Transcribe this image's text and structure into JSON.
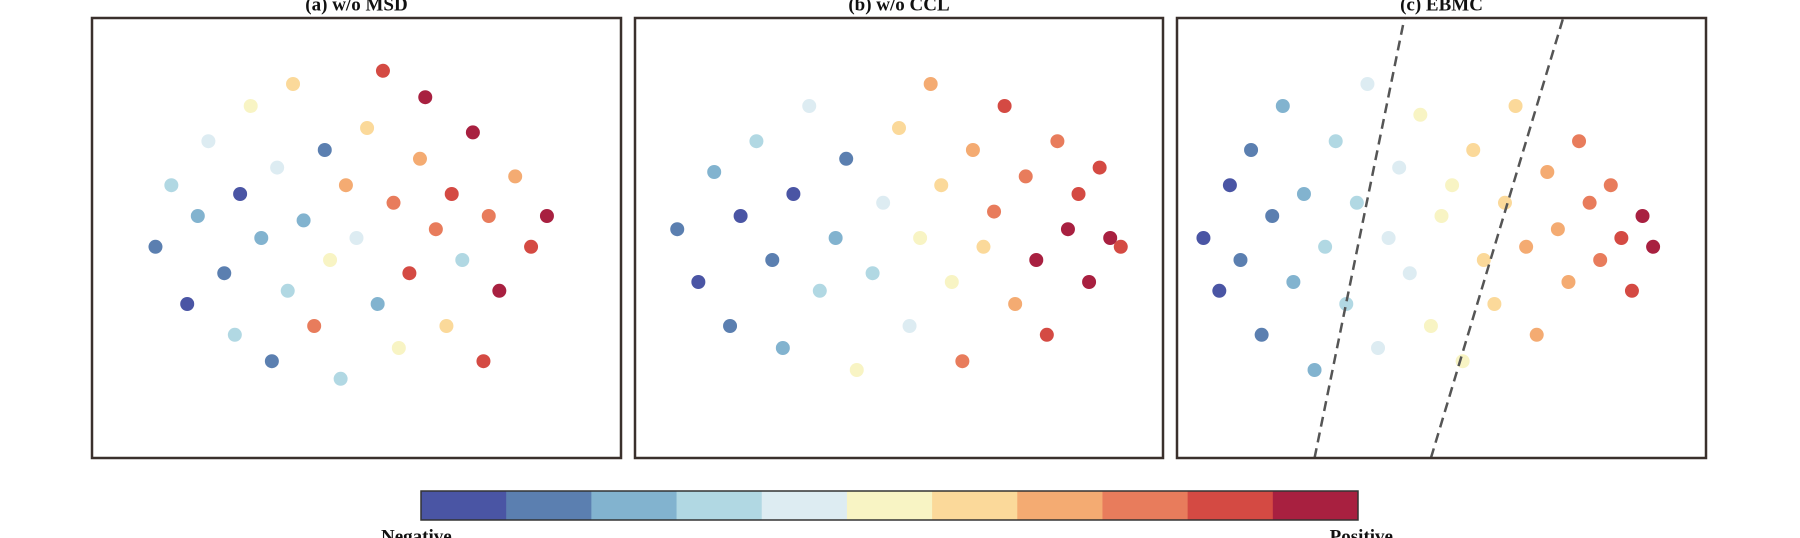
{
  "chart_data": [
    {
      "type": "scatter",
      "title": "(a) w/o MSD",
      "xlim": [
        0,
        100
      ],
      "ylim": [
        0,
        100
      ],
      "x": [
        12,
        15,
        18,
        20,
        22,
        25,
        27,
        28,
        30,
        32,
        34,
        35,
        37,
        38,
        40,
        42,
        44,
        45,
        47,
        48,
        50,
        52,
        54,
        55,
        57,
        58,
        60,
        62,
        63,
        65,
        67,
        68,
        70,
        72,
        74,
        75,
        77,
        80,
        83,
        86
      ],
      "y": [
        48,
        62,
        35,
        55,
        72,
        42,
        28,
        60,
        80,
        50,
        22,
        66,
        38,
        85,
        54,
        30,
        70,
        45,
        18,
        62,
        50,
        75,
        35,
        88,
        58,
        25,
        42,
        68,
        82,
        52,
        30,
        60,
        45,
        74,
        22,
        55,
        38,
        64,
        48,
        55
      ],
      "c": [
        1,
        3,
        0,
        2,
        4,
        1,
        3,
        0,
        5,
        2,
        1,
        4,
        3,
        6,
        2,
        8,
        1,
        5,
        3,
        7,
        4,
        6,
        2,
        9,
        8,
        5,
        9,
        7,
        10,
        8,
        6,
        9,
        3,
        10,
        9,
        8,
        10,
        7,
        9,
        10
      ]
    },
    {
      "type": "scatter",
      "title": "(b) w/o CCL",
      "xlim": [
        0,
        100
      ],
      "ylim": [
        0,
        100
      ],
      "x": [
        8,
        12,
        15,
        18,
        20,
        23,
        26,
        28,
        30,
        33,
        35,
        38,
        40,
        42,
        45,
        47,
        50,
        52,
        54,
        56,
        58,
        60,
        62,
        64,
        66,
        68,
        70,
        72,
        74,
        76,
        78,
        80,
        82,
        84,
        86,
        88,
        90,
        92
      ],
      "y": [
        52,
        40,
        65,
        30,
        55,
        72,
        45,
        25,
        60,
        80,
        38,
        50,
        68,
        20,
        42,
        58,
        75,
        30,
        50,
        85,
        62,
        40,
        22,
        70,
        48,
        56,
        80,
        35,
        64,
        45,
        28,
        72,
        52,
        60,
        40,
        66,
        50,
        48
      ],
      "c": [
        1,
        0,
        2,
        1,
        0,
        3,
        1,
        2,
        0,
        4,
        3,
        2,
        1,
        5,
        3,
        4,
        6,
        4,
        5,
        7,
        6,
        5,
        8,
        7,
        6,
        8,
        9,
        7,
        8,
        10,
        9,
        8,
        10,
        9,
        10,
        9,
        10,
        9
      ]
    },
    {
      "type": "scatter",
      "title": "(c) EBMC",
      "xlim": [
        0,
        100
      ],
      "ylim": [
        0,
        100
      ],
      "x": [
        5,
        8,
        10,
        12,
        14,
        16,
        18,
        20,
        22,
        24,
        26,
        28,
        30,
        32,
        34,
        36,
        38,
        40,
        42,
        44,
        46,
        48,
        50,
        52,
        54,
        56,
        58,
        60,
        62,
        64,
        66,
        68,
        70,
        72,
        74,
        76,
        78,
        80,
        82,
        84,
        86,
        88,
        90
      ],
      "y": [
        50,
        38,
        62,
        45,
        70,
        28,
        55,
        80,
        40,
        60,
        20,
        48,
        72,
        35,
        58,
        85,
        25,
        50,
        66,
        42,
        78,
        30,
        55,
        62,
        22,
        70,
        45,
        35,
        58,
        80,
        48,
        28,
        65,
        52,
        40,
        72,
        58,
        45,
        62,
        50,
        38,
        55,
        48
      ],
      "c": [
        0,
        0,
        0,
        1,
        1,
        1,
        1,
        2,
        2,
        2,
        2,
        3,
        3,
        3,
        3,
        4,
        4,
        4,
        4,
        4,
        5,
        5,
        5,
        5,
        5,
        6,
        6,
        6,
        6,
        6,
        7,
        7,
        7,
        7,
        7,
        8,
        8,
        8,
        8,
        9,
        9,
        10,
        10
      ],
      "boundaries": [
        {
          "x": [
            26,
            43
          ],
          "y": [
            0,
            100
          ]
        },
        {
          "x": [
            48,
            73
          ],
          "y": [
            0,
            100
          ]
        }
      ]
    }
  ],
  "colorbar": {
    "colors": [
      "#4a55a4",
      "#5b7fb0",
      "#82b3cf",
      "#b1d8e3",
      "#ddecf2",
      "#f8f4c4",
      "#fbd99a",
      "#f4ab72",
      "#e87c5c",
      "#d44a43",
      "#a82040"
    ],
    "labels": [
      "Negative",
      "Positive"
    ]
  }
}
